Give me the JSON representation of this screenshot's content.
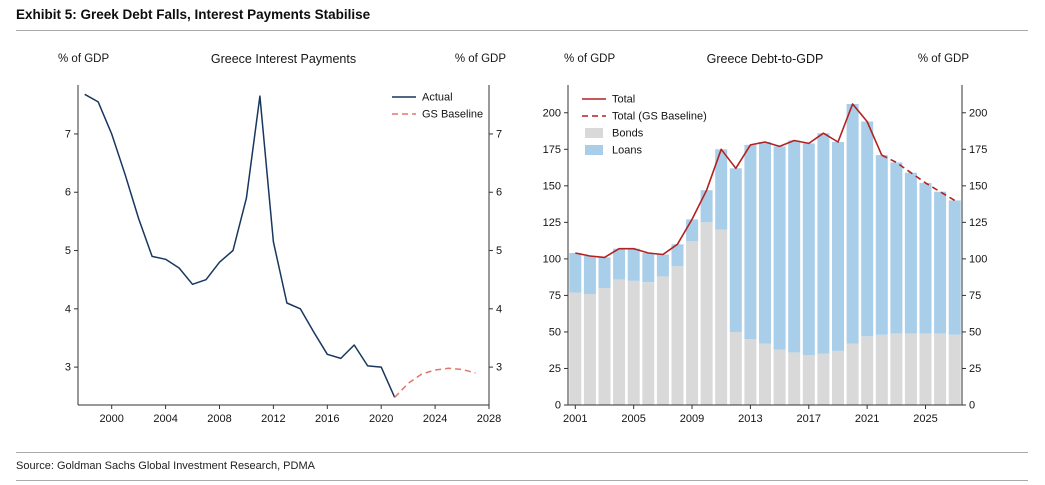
{
  "exhibit": {
    "title": "Exhibit 5: Greek Debt Falls, Interest Payments Stabilise",
    "source": "Source: Goldman Sachs Global Investment Research, PDMA"
  },
  "colors": {
    "navy": "#17375e",
    "salmon": "#e2766b",
    "red": "#b22222",
    "bonds_gray": "#d9d9d9",
    "loans_blue": "#a9cee9",
    "axis": "#333333"
  },
  "chart_data": [
    {
      "type": "line",
      "title": "Greece Interest Payments",
      "unit_left": "% of GDP",
      "unit_right": "% of GDP",
      "xlim": [
        1997.5,
        2028
      ],
      "ylim": [
        2.35,
        7.84
      ],
      "yticks": [
        3,
        4,
        5,
        6,
        7
      ],
      "xticks": [
        2000,
        2004,
        2008,
        2012,
        2016,
        2020,
        2024,
        2028
      ],
      "series": [
        {
          "name": "Actual",
          "color": "#17375e",
          "dash": null,
          "x": [
            1998,
            1999,
            2000,
            2001,
            2002,
            2003,
            2004,
            2005,
            2006,
            2007,
            2008,
            2009,
            2010,
            2011,
            2012,
            2013,
            2014,
            2015,
            2016,
            2017,
            2018,
            2019,
            2020,
            2021
          ],
          "y": [
            7.68,
            7.55,
            7.0,
            6.3,
            5.55,
            4.9,
            4.85,
            4.7,
            4.42,
            4.5,
            4.8,
            5.0,
            5.9,
            7.65,
            5.15,
            4.1,
            4.0,
            3.6,
            3.22,
            3.15,
            3.38,
            3.02,
            3.0,
            2.48
          ]
        },
        {
          "name": "GS Baseline",
          "color": "#e2766b",
          "dash": "6 4",
          "x": [
            2021,
            2022,
            2023,
            2024,
            2025,
            2026,
            2027
          ],
          "y": [
            2.48,
            2.72,
            2.88,
            2.95,
            2.98,
            2.96,
            2.9
          ]
        }
      ],
      "legend": [
        {
          "label": "Actual",
          "swatch": "line",
          "color": "#17375e",
          "dash": null
        },
        {
          "label": "GS Baseline",
          "swatch": "line",
          "color": "#e2766b",
          "dash": "6 4"
        }
      ]
    },
    {
      "type": "bar",
      "title": "Greece Debt-to-GDP",
      "unit_left": "% of GDP",
      "unit_right": "% of GDP",
      "categories": [
        2001,
        2002,
        2003,
        2004,
        2005,
        2006,
        2007,
        2008,
        2009,
        2010,
        2011,
        2012,
        2013,
        2014,
        2015,
        2016,
        2017,
        2018,
        2019,
        2020,
        2021,
        2022,
        2023,
        2024,
        2025,
        2026,
        2027
      ],
      "series": [
        {
          "name": "Bonds",
          "color": "#d9d9d9",
          "values": [
            77,
            76,
            80,
            86,
            85,
            84,
            88,
            95,
            112,
            125,
            120,
            50,
            45,
            42,
            38,
            36,
            34,
            35,
            37,
            42,
            47,
            48,
            49,
            49,
            49,
            49,
            48
          ]
        },
        {
          "name": "Loans",
          "color": "#a9cee9",
          "values": [
            27,
            26,
            21,
            21,
            22,
            20,
            15,
            15,
            15,
            22,
            55,
            112,
            133,
            138,
            139,
            145,
            145,
            151,
            143,
            164,
            147,
            123,
            117,
            110,
            103,
            97,
            92
          ]
        }
      ],
      "lines": [
        {
          "name": "Total",
          "color": "#b22222",
          "dash": null,
          "categories": [
            2001,
            2002,
            2003,
            2004,
            2005,
            2006,
            2007,
            2008,
            2009,
            2010,
            2011,
            2012,
            2013,
            2014,
            2015,
            2016,
            2017,
            2018,
            2019,
            2020,
            2021,
            2022
          ],
          "values": [
            104,
            102,
            101,
            107,
            107,
            104,
            103,
            110,
            127,
            147,
            175,
            162,
            178,
            180,
            177,
            181,
            179,
            186,
            180,
            206,
            194,
            171
          ]
        },
        {
          "name": "Total (GS Baseline)",
          "color": "#b22222",
          "dash": "6 4",
          "categories": [
            2022,
            2023,
            2024,
            2025,
            2026,
            2027
          ],
          "values": [
            171,
            166,
            159,
            152,
            146,
            140
          ]
        }
      ],
      "ylim": [
        0,
        219
      ],
      "yticks": [
        0,
        25,
        50,
        75,
        100,
        125,
        150,
        175,
        200
      ],
      "xticks": [
        2001,
        2005,
        2009,
        2013,
        2017,
        2021,
        2025
      ],
      "legend": [
        {
          "label": "Total",
          "swatch": "line",
          "color": "#b22222",
          "dash": null
        },
        {
          "label": "Total (GS Baseline)",
          "swatch": "line",
          "color": "#b22222",
          "dash": "6 4"
        },
        {
          "label": "Bonds",
          "swatch": "rect",
          "color": "#d9d9d9"
        },
        {
          "label": "Loans",
          "swatch": "rect",
          "color": "#a9cee9"
        }
      ]
    }
  ]
}
